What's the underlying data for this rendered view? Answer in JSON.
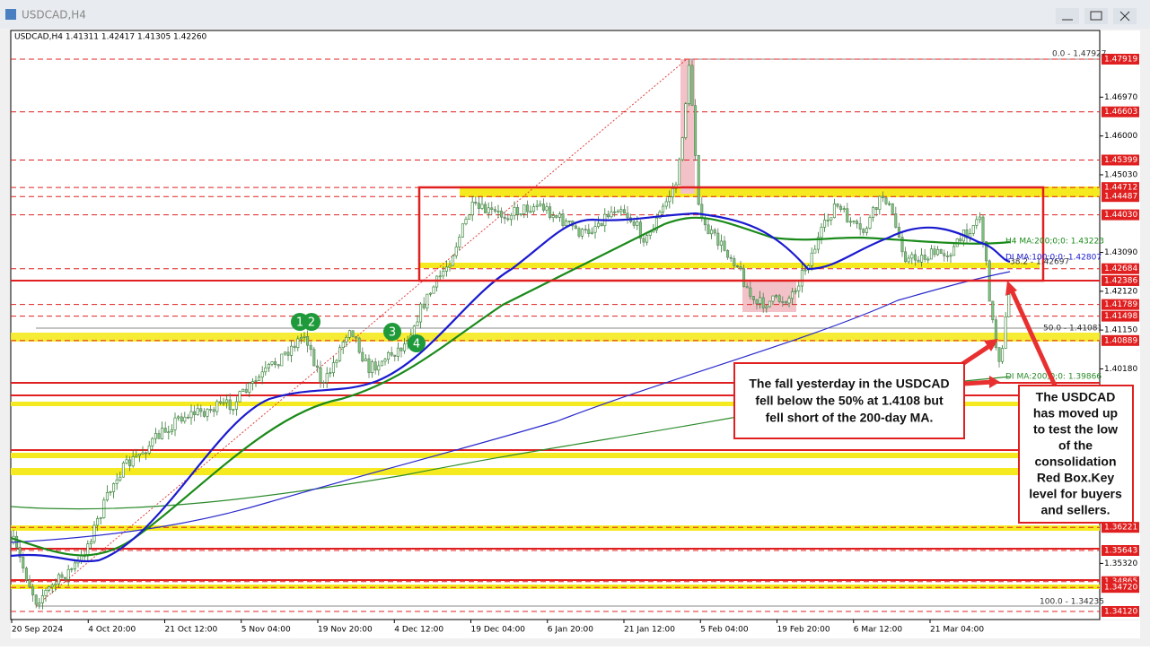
{
  "window": {
    "title": "USDCAD,H4"
  },
  "chart_info": "USDCAD,H4  1.41311 1.42417 1.41305 1.42260",
  "price_axis": {
    "highlighted": [
      "1.47919",
      "1.46603",
      "1.45399",
      "1.44712",
      "1.44487",
      "1.44030",
      "1.42684",
      "1.42386",
      "1.41789",
      "1.41498",
      "1.40889",
      "1.36221",
      "1.35643",
      "1.34865",
      "1.34720",
      "1.34120"
    ],
    "plain": [
      "1.46970",
      "1.46000",
      "1.45030",
      "1.43090",
      "1.42120",
      "1.41150",
      "1.40180",
      "1.35320"
    ]
  },
  "time_axis": [
    "20 Sep 2024",
    "4 Oct 20:00",
    "21 Oct 12:00",
    "5 Nov 04:00",
    "19 Nov 20:00",
    "4 Dec 12:00",
    "19 Dec 04:00",
    "6 Jan 20:00",
    "21 Jan 12:00",
    "5 Feb 04:00",
    "19 Feb 20:00",
    "6 Mar 12:00",
    "21 Mar 04:00"
  ],
  "fib_labels": [
    "0.0 - 1.47927",
    "38.2 - 1.42697",
    "50.0 - 1.41081",
    "100.0 - 1.34235"
  ],
  "ma_labels": [
    "H4 MA:200;0;0: 1.43223",
    "DI MA:100;0;0: 1.42807",
    "DI MA:200;0;0: 1.39866"
  ],
  "markers": [
    "1",
    "2",
    "3",
    "4"
  ],
  "callouts": [
    {
      "lines": [
        "The fall yesterday in the USDCAD",
        "fell below the 50% at 1.4108 but",
        "fell short of the 200-day MA."
      ]
    },
    {
      "lines": [
        "The USDCAD",
        "has moved up",
        "to test the low",
        "of the",
        "consolidation",
        "Red Box.Key",
        "level for buyers",
        "and sellers."
      ]
    }
  ]
}
